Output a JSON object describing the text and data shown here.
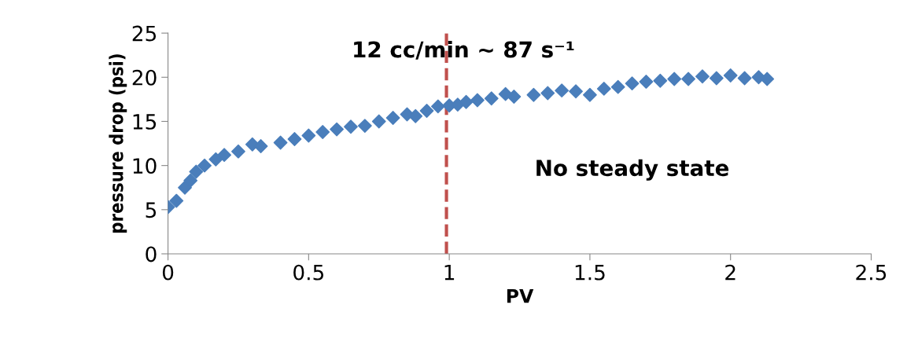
{
  "chart_data": {
    "type": "scatter",
    "title": "12 cc/min ~ 87 s⁻¹",
    "xlabel": "PV",
    "ylabel": "pressure drop (psi)",
    "annotations": [
      "No steady state"
    ],
    "x": [
      0,
      0.03,
      0.06,
      0.08,
      0.1,
      0.13,
      0.17,
      0.2,
      0.25,
      0.3,
      0.33,
      0.4,
      0.45,
      0.5,
      0.55,
      0.6,
      0.65,
      0.7,
      0.75,
      0.8,
      0.85,
      0.88,
      0.92,
      0.96,
      1.0,
      1.03,
      1.06,
      1.1,
      1.15,
      1.2,
      1.23,
      1.3,
      1.35,
      1.4,
      1.45,
      1.5,
      1.55,
      1.6,
      1.65,
      1.7,
      1.75,
      1.8,
      1.85,
      1.9,
      1.95,
      2.0,
      2.05,
      2.1,
      2.13
    ],
    "series": [
      {
        "color": "#4a7ebb",
        "values": [
          5.3,
          6.0,
          7.5,
          8.3,
          9.3,
          10.0,
          10.7,
          11.2,
          11.6,
          12.4,
          12.2,
          12.6,
          13.0,
          13.4,
          13.8,
          14.1,
          14.4,
          14.5,
          15.0,
          15.4,
          15.8,
          15.6,
          16.2,
          16.7,
          16.8,
          16.9,
          17.2,
          17.4,
          17.6,
          18.1,
          17.8,
          18.0,
          18.2,
          18.5,
          18.4,
          18.0,
          18.7,
          18.9,
          19.3,
          19.5,
          19.6,
          19.8,
          19.8,
          20.1,
          19.9,
          20.2,
          19.9,
          20.0,
          19.8
        ]
      }
    ],
    "ref_lines": [
      {
        "axis": "x",
        "value": 0.99,
        "color": "#c0504d",
        "line_style": "dashed"
      }
    ],
    "marker": "diamond",
    "grid": false,
    "legend": false,
    "xlim": [
      0,
      2.5
    ],
    "ylim": [
      0,
      25
    ],
    "xticks": [
      0,
      0.5,
      1,
      1.5,
      2,
      2.5
    ],
    "yticks": [
      0,
      5,
      10,
      15,
      20,
      25
    ]
  }
}
